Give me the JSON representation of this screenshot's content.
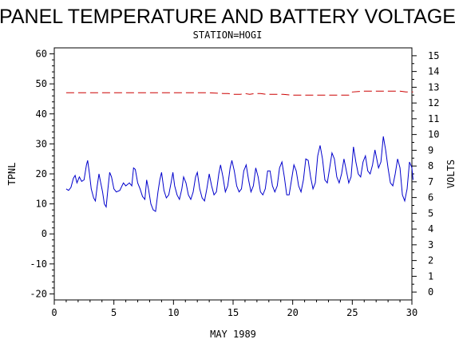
{
  "chart_data": {
    "type": "line",
    "title": "PANEL TEMPERATURE AND BATTERY VOLTAGE",
    "subtitle": "STATION=HOGI",
    "xlabel": "MAY 1989",
    "ylabel_left": "TPNL",
    "ylabel_right": "VOLTS",
    "xlim": [
      0,
      30
    ],
    "ylim_left": [
      -22,
      62
    ],
    "ylim_right": [
      -0.5,
      15.5
    ],
    "x_ticks": [
      0,
      5,
      10,
      15,
      20,
      25,
      30
    ],
    "y_left_ticks": [
      -20,
      -10,
      0,
      10,
      20,
      30,
      40,
      50,
      60
    ],
    "y_right_ticks": [
      0,
      1,
      2,
      3,
      4,
      5,
      6,
      7,
      8,
      9,
      10,
      11,
      12,
      13,
      14,
      15
    ],
    "grid": false,
    "legend": "none",
    "series": [
      {
        "axis": "left",
        "color": "#0000cc",
        "style": "solid",
        "points": [
          [
            1.0,
            15
          ],
          [
            1.2,
            14.5
          ],
          [
            1.4,
            15.5
          ],
          [
            1.6,
            18.5
          ],
          [
            1.75,
            19.5
          ],
          [
            1.9,
            17
          ],
          [
            2.1,
            19
          ],
          [
            2.3,
            17.5
          ],
          [
            2.5,
            18
          ],
          [
            2.7,
            23
          ],
          [
            2.8,
            24.5
          ],
          [
            2.95,
            20
          ],
          [
            3.1,
            15
          ],
          [
            3.3,
            12
          ],
          [
            3.45,
            11
          ],
          [
            3.6,
            16
          ],
          [
            3.75,
            20
          ],
          [
            3.9,
            17
          ],
          [
            4.05,
            14
          ],
          [
            4.2,
            10
          ],
          [
            4.35,
            9
          ],
          [
            4.5,
            15
          ],
          [
            4.65,
            20.5
          ],
          [
            4.8,
            19
          ],
          [
            5.0,
            15
          ],
          [
            5.2,
            14
          ],
          [
            5.5,
            14.5
          ],
          [
            5.8,
            17
          ],
          [
            6.0,
            16
          ],
          [
            6.3,
            17
          ],
          [
            6.5,
            16
          ],
          [
            6.65,
            22
          ],
          [
            6.8,
            21.5
          ],
          [
            7.0,
            17
          ],
          [
            7.2,
            15
          ],
          [
            7.4,
            12.5
          ],
          [
            7.6,
            11.5
          ],
          [
            7.75,
            18
          ],
          [
            7.9,
            15
          ],
          [
            8.1,
            10
          ],
          [
            8.3,
            8
          ],
          [
            8.5,
            7.5
          ],
          [
            8.7,
            14
          ],
          [
            8.85,
            18
          ],
          [
            9.0,
            20.5
          ],
          [
            9.2,
            14.5
          ],
          [
            9.4,
            12
          ],
          [
            9.6,
            13
          ],
          [
            9.8,
            17
          ],
          [
            9.95,
            20.5
          ],
          [
            10.1,
            16
          ],
          [
            10.3,
            13
          ],
          [
            10.5,
            11.5
          ],
          [
            10.7,
            15
          ],
          [
            10.85,
            19
          ],
          [
            11.05,
            17
          ],
          [
            11.25,
            13
          ],
          [
            11.45,
            11.5
          ],
          [
            11.65,
            14
          ],
          [
            11.85,
            19
          ],
          [
            12.0,
            20.5
          ],
          [
            12.2,
            15
          ],
          [
            12.4,
            12
          ],
          [
            12.6,
            11
          ],
          [
            12.8,
            15
          ],
          [
            13.0,
            20
          ],
          [
            13.2,
            16
          ],
          [
            13.4,
            13
          ],
          [
            13.6,
            14
          ],
          [
            13.8,
            20
          ],
          [
            13.95,
            23
          ],
          [
            14.15,
            19
          ],
          [
            14.35,
            14
          ],
          [
            14.55,
            16
          ],
          [
            14.75,
            22
          ],
          [
            14.9,
            24.5
          ],
          [
            15.1,
            21
          ],
          [
            15.3,
            16
          ],
          [
            15.5,
            14
          ],
          [
            15.7,
            15
          ],
          [
            15.9,
            21
          ],
          [
            16.1,
            23
          ],
          [
            16.3,
            18
          ],
          [
            16.5,
            14
          ],
          [
            16.7,
            16
          ],
          [
            16.9,
            22
          ],
          [
            17.1,
            19
          ],
          [
            17.3,
            14
          ],
          [
            17.5,
            13
          ],
          [
            17.7,
            15
          ],
          [
            17.9,
            21
          ],
          [
            18.1,
            21
          ],
          [
            18.3,
            16
          ],
          [
            18.5,
            14
          ],
          [
            18.7,
            16
          ],
          [
            18.9,
            22
          ],
          [
            19.1,
            24
          ],
          [
            19.3,
            19
          ],
          [
            19.5,
            13
          ],
          [
            19.7,
            13
          ],
          [
            19.9,
            18
          ],
          [
            20.1,
            23
          ],
          [
            20.3,
            21
          ],
          [
            20.5,
            16
          ],
          [
            20.7,
            14
          ],
          [
            20.9,
            18
          ],
          [
            21.1,
            25
          ],
          [
            21.3,
            24.5
          ],
          [
            21.5,
            19
          ],
          [
            21.7,
            15
          ],
          [
            21.9,
            17
          ],
          [
            22.1,
            26
          ],
          [
            22.3,
            29.5
          ],
          [
            22.5,
            25
          ],
          [
            22.7,
            18
          ],
          [
            22.9,
            17
          ],
          [
            23.1,
            22
          ],
          [
            23.3,
            27
          ],
          [
            23.5,
            25
          ],
          [
            23.7,
            19
          ],
          [
            23.9,
            17
          ],
          [
            24.1,
            20
          ],
          [
            24.3,
            25
          ],
          [
            24.5,
            21
          ],
          [
            24.7,
            17
          ],
          [
            24.9,
            19
          ],
          [
            25.1,
            29
          ],
          [
            25.3,
            24
          ],
          [
            25.5,
            20
          ],
          [
            25.7,
            19
          ],
          [
            25.9,
            24
          ],
          [
            26.1,
            26
          ],
          [
            26.3,
            21
          ],
          [
            26.5,
            20
          ],
          [
            26.7,
            23
          ],
          [
            26.9,
            28
          ],
          [
            27.0,
            26
          ],
          [
            27.2,
            22
          ],
          [
            27.4,
            24
          ],
          [
            27.6,
            32.5
          ],
          [
            27.8,
            28
          ],
          [
            28.0,
            22
          ],
          [
            28.2,
            17
          ],
          [
            28.4,
            16
          ],
          [
            28.6,
            20
          ],
          [
            28.8,
            25
          ],
          [
            29.0,
            22
          ],
          [
            29.2,
            13
          ],
          [
            29.4,
            11
          ],
          [
            29.6,
            15
          ],
          [
            29.8,
            24
          ],
          [
            30.0,
            22
          ],
          [
            30.1,
            18
          ]
        ]
      },
      {
        "axis": "right",
        "color": "#cc0000",
        "style": "dashed",
        "points": [
          [
            1.0,
            12.65
          ],
          [
            3,
            12.65
          ],
          [
            5,
            12.65
          ],
          [
            7,
            12.65
          ],
          [
            9,
            12.65
          ],
          [
            11,
            12.65
          ],
          [
            13,
            12.65
          ],
          [
            14.2,
            12.6
          ],
          [
            14.6,
            12.6
          ],
          [
            15.0,
            12.55
          ],
          [
            15.6,
            12.55
          ],
          [
            16.0,
            12.6
          ],
          [
            16.4,
            12.55
          ],
          [
            16.8,
            12.6
          ],
          [
            17.3,
            12.6
          ],
          [
            17.8,
            12.55
          ],
          [
            18.5,
            12.55
          ],
          [
            19.2,
            12.55
          ],
          [
            20,
            12.5
          ],
          [
            21,
            12.5
          ],
          [
            22,
            12.5
          ],
          [
            23,
            12.5
          ],
          [
            24,
            12.5
          ],
          [
            24.7,
            12.5
          ],
          [
            25.0,
            12.7
          ],
          [
            26,
            12.75
          ],
          [
            27,
            12.75
          ],
          [
            28,
            12.75
          ],
          [
            29,
            12.75
          ],
          [
            29.5,
            12.7
          ],
          [
            30.1,
            12.7
          ]
        ]
      }
    ]
  }
}
